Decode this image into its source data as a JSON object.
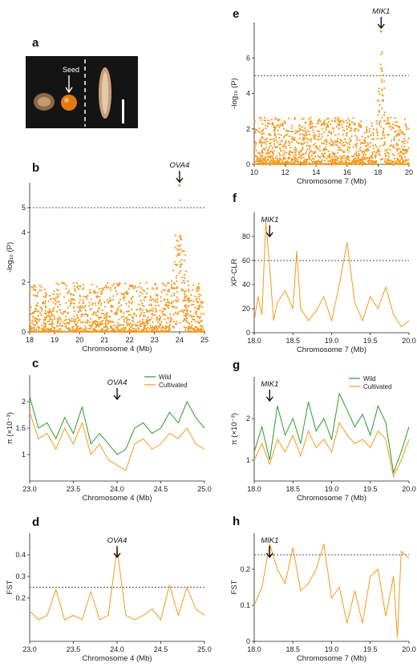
{
  "colors": {
    "orange": "#f59a1e",
    "green": "#2e9a2e",
    "threshold": "#555555",
    "photo_bg": "#141414"
  },
  "photo": {
    "letter": "a",
    "seed_label": "Seed",
    "icons": [
      "husked-seed-icon",
      "orange-seed-icon",
      "elongated-seed-icon",
      "scale-bar-icon"
    ]
  },
  "chart_data": [
    {
      "id": "b",
      "type": "scatter",
      "letter": "b",
      "xlabel_prefix": "Chromosome 4 (Mb)",
      "ylabel": "-log₁₀ (P)",
      "xlim": [
        18,
        25
      ],
      "ylim": [
        0,
        6
      ],
      "xticks": [
        "18",
        "19",
        "20",
        "21",
        "22",
        "23",
        "24",
        "25"
      ],
      "yticks": [
        "0",
        "2",
        "4",
        "5"
      ],
      "threshold": 5,
      "annotation": {
        "label": "OVA4",
        "x": 24.0
      },
      "peak": {
        "x": 24.0,
        "y": 5.9
      }
    },
    {
      "id": "c",
      "type": "line",
      "letter": "c",
      "xlabel_prefix": "Chromosome 4 (Mb)",
      "ylabel": "π (×10⁻³)",
      "xlim": [
        23.0,
        25.0
      ],
      "ylim": [
        0.5,
        2.5
      ],
      "xticks": [
        "23.0",
        "23.5",
        "24.0",
        "24.5",
        "25.0"
      ],
      "yticks": [
        "1",
        "1.5",
        "2"
      ],
      "legend": [
        "Wild",
        "Cultivated"
      ],
      "annotation": {
        "label": "OVA4",
        "x": 24.0
      },
      "series": [
        {
          "name": "Wild",
          "color": "green",
          "x": [
            23.0,
            23.1,
            23.2,
            23.3,
            23.4,
            23.5,
            23.6,
            23.7,
            23.8,
            23.9,
            24.0,
            24.1,
            24.2,
            24.3,
            24.4,
            24.5,
            24.6,
            24.7,
            24.8,
            24.9,
            25.0
          ],
          "y": [
            2.1,
            1.5,
            1.6,
            1.3,
            1.7,
            1.4,
            1.9,
            1.2,
            1.4,
            1.2,
            1.0,
            1.1,
            1.5,
            1.6,
            1.4,
            1.5,
            1.8,
            1.6,
            2.0,
            1.7,
            1.5
          ]
        },
        {
          "name": "Cultivated",
          "color": "orange",
          "x": [
            23.0,
            23.1,
            23.2,
            23.3,
            23.4,
            23.5,
            23.6,
            23.7,
            23.8,
            23.9,
            24.0,
            24.1,
            24.2,
            24.3,
            24.4,
            24.5,
            24.6,
            24.7,
            24.8,
            24.9,
            25.0
          ],
          "y": [
            1.8,
            1.3,
            1.4,
            1.1,
            1.5,
            1.2,
            1.6,
            1.0,
            1.2,
            0.9,
            0.8,
            0.7,
            1.2,
            1.3,
            1.1,
            1.2,
            1.4,
            1.3,
            1.5,
            1.2,
            1.1
          ]
        }
      ]
    },
    {
      "id": "d",
      "type": "line",
      "letter": "d",
      "xlabel_prefix": "Chromosome 4 (Mb)",
      "ylabel": "FST",
      "xlim": [
        23.0,
        25.0
      ],
      "ylim": [
        0,
        0.5
      ],
      "xticks": [
        "23.0",
        "23.5",
        "24.0",
        "24.5",
        "25.0"
      ],
      "yticks": [
        "0.2",
        "0.3",
        "0.4"
      ],
      "threshold": 0.25,
      "annotation": {
        "label": "OVA4",
        "x": 24.0
      },
      "series": [
        {
          "name": "FST",
          "color": "orange",
          "x": [
            23.0,
            23.1,
            23.2,
            23.3,
            23.4,
            23.5,
            23.6,
            23.7,
            23.8,
            23.9,
            24.0,
            24.1,
            24.2,
            24.3,
            24.4,
            24.5,
            24.6,
            24.7,
            24.8,
            24.9,
            25.0
          ],
          "y": [
            0.14,
            0.1,
            0.12,
            0.24,
            0.1,
            0.12,
            0.1,
            0.23,
            0.1,
            0.12,
            0.43,
            0.12,
            0.1,
            0.12,
            0.15,
            0.1,
            0.26,
            0.12,
            0.25,
            0.15,
            0.12
          ]
        }
      ]
    },
    {
      "id": "e",
      "type": "scatter",
      "letter": "e",
      "xlabel_prefix": "Chromosome 7 (Mb)",
      "ylabel": "-log₁₀ (P)",
      "xlim": [
        10,
        20
      ],
      "ylim": [
        0,
        8
      ],
      "xticks": [
        "10",
        "12",
        "14",
        "16",
        "18",
        "20"
      ],
      "xtick_minor": [
        "11",
        "13",
        "15",
        "17",
        "19"
      ],
      "yticks": [
        "0",
        "2",
        "4",
        "6"
      ],
      "threshold": 5,
      "annotation": {
        "label": "MIK1",
        "x": 18.2
      },
      "peak": {
        "x": 18.2,
        "y": 7.5
      }
    },
    {
      "id": "f",
      "type": "line",
      "letter": "f",
      "xlabel_prefix": "Chromosome 7 (Mb)",
      "ylabel": "XP-CLR",
      "xlim": [
        18.0,
        20.0
      ],
      "ylim": [
        0,
        100
      ],
      "xticks": [
        "18.0",
        "18.5",
        "19.0",
        "19.5",
        "20.0"
      ],
      "yticks": [
        "0",
        "20",
        "40",
        "60",
        "80"
      ],
      "threshold": 60,
      "annotation": {
        "label": "MIK1",
        "x": 18.2
      },
      "series": [
        {
          "name": "XP-CLR",
          "color": "orange",
          "x": [
            18.0,
            18.05,
            18.1,
            18.15,
            18.2,
            18.25,
            18.3,
            18.4,
            18.5,
            18.55,
            18.6,
            18.7,
            18.8,
            18.9,
            19.0,
            19.1,
            19.2,
            19.25,
            19.3,
            19.4,
            19.5,
            19.6,
            19.7,
            19.8,
            19.9,
            20.0
          ],
          "y": [
            10,
            30,
            15,
            92,
            55,
            10,
            25,
            35,
            20,
            68,
            20,
            10,
            18,
            30,
            10,
            40,
            75,
            50,
            25,
            10,
            30,
            20,
            38,
            15,
            5,
            10
          ]
        }
      ]
    },
    {
      "id": "g",
      "type": "line",
      "letter": "g",
      "xlabel_prefix": "Chromosome 7 (Mb)",
      "ylabel": "π (×10⁻³)",
      "xlim": [
        18.0,
        20.0
      ],
      "ylim": [
        0.5,
        3.0
      ],
      "xticks": [
        "18.0",
        "18.5",
        "19.0",
        "19.5",
        "20.0"
      ],
      "yticks": [
        "1",
        "2"
      ],
      "legend": [
        "Wild",
        "Cultivated"
      ],
      "annotation": {
        "label": "MIK1",
        "x": 18.2
      },
      "series": [
        {
          "name": "Wild",
          "color": "green",
          "x": [
            18.0,
            18.1,
            18.2,
            18.3,
            18.4,
            18.5,
            18.6,
            18.7,
            18.8,
            18.9,
            19.0,
            19.1,
            19.2,
            19.3,
            19.4,
            19.5,
            19.6,
            19.7,
            19.8,
            19.9,
            20.0
          ],
          "y": [
            1.2,
            1.8,
            1.0,
            2.3,
            1.6,
            2.0,
            1.4,
            2.4,
            1.7,
            2.0,
            1.5,
            2.6,
            2.2,
            1.8,
            2.1,
            1.6,
            2.3,
            1.9,
            0.7,
            1.2,
            1.8
          ]
        },
        {
          "name": "Cultivated",
          "color": "orange",
          "x": [
            18.0,
            18.1,
            18.2,
            18.3,
            18.4,
            18.5,
            18.6,
            18.7,
            18.8,
            18.9,
            19.0,
            19.1,
            19.2,
            19.3,
            19.4,
            19.5,
            19.6,
            19.7,
            19.8,
            19.9,
            20.0
          ],
          "y": [
            1.0,
            1.4,
            0.9,
            1.5,
            1.2,
            1.6,
            1.1,
            1.7,
            1.3,
            1.5,
            1.2,
            1.9,
            1.6,
            1.4,
            1.5,
            1.3,
            1.7,
            1.5,
            0.6,
            1.0,
            1.5
          ]
        }
      ]
    },
    {
      "id": "h",
      "type": "line",
      "letter": "h",
      "xlabel_prefix": "Chromosome 7 (Mb)",
      "ylabel": "FST",
      "xlim": [
        18.0,
        20.0
      ],
      "ylim": [
        0,
        0.3
      ],
      "xticks": [
        "18.0",
        "18.5",
        "19.0",
        "19.5",
        "20.0"
      ],
      "yticks": [
        "0",
        "0.1",
        "0.2"
      ],
      "threshold": 0.24,
      "annotation": {
        "label": "MIK1",
        "x": 18.2
      },
      "series": [
        {
          "name": "FST",
          "color": "orange",
          "x": [
            18.0,
            18.1,
            18.2,
            18.3,
            18.4,
            18.5,
            18.6,
            18.7,
            18.8,
            18.9,
            19.0,
            19.1,
            19.2,
            19.3,
            19.4,
            19.5,
            19.6,
            19.7,
            19.8,
            19.85,
            19.9,
            20.0
          ],
          "y": [
            0.1,
            0.15,
            0.27,
            0.2,
            0.16,
            0.26,
            0.14,
            0.16,
            0.2,
            0.27,
            0.12,
            0.15,
            0.05,
            0.14,
            0.05,
            0.18,
            0.2,
            0.07,
            0.18,
            0.01,
            0.25,
            0.23
          ]
        }
      ]
    }
  ]
}
